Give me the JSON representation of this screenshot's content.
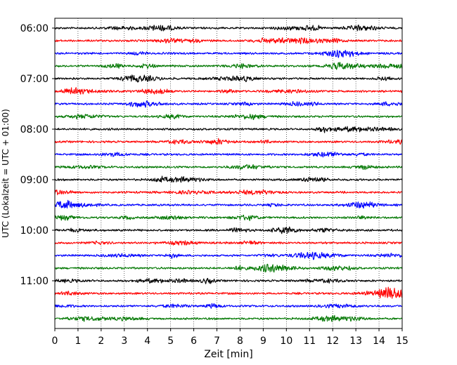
{
  "chart_data": {
    "type": "line",
    "title": "",
    "xlabel": "Zeit  [min]",
    "ylabel": "UTC (Lokalzeit = UTC + 01:00)",
    "xlim": [
      0,
      15
    ],
    "x_ticks": [
      "0",
      "1",
      "2",
      "3",
      "4",
      "5",
      "6",
      "7",
      "8",
      "9",
      "10",
      "11",
      "12",
      "13",
      "14",
      "15"
    ],
    "y_tick_labels": [
      "06:00",
      "07:00",
      "08:00",
      "09:00",
      "10:00",
      "11:00"
    ],
    "grid": "vertical-dotted",
    "series_colors": [
      "#000000",
      "#ff0000",
      "#0000ff",
      "#007700"
    ],
    "rows": [
      {
        "start": "06:00",
        "color": "#000000"
      },
      {
        "start": "06:15",
        "color": "#ff0000"
      },
      {
        "start": "06:30",
        "color": "#0000ff"
      },
      {
        "start": "06:45",
        "color": "#007700"
      },
      {
        "start": "07:00",
        "color": "#000000"
      },
      {
        "start": "07:15",
        "color": "#ff0000"
      },
      {
        "start": "07:30",
        "color": "#0000ff"
      },
      {
        "start": "07:45",
        "color": "#007700"
      },
      {
        "start": "08:00",
        "color": "#000000"
      },
      {
        "start": "08:15",
        "color": "#ff0000"
      },
      {
        "start": "08:30",
        "color": "#0000ff"
      },
      {
        "start": "08:45",
        "color": "#007700"
      },
      {
        "start": "09:00",
        "color": "#000000"
      },
      {
        "start": "09:15",
        "color": "#ff0000"
      },
      {
        "start": "09:30",
        "color": "#0000ff"
      },
      {
        "start": "09:45",
        "color": "#007700"
      },
      {
        "start": "10:00",
        "color": "#000000"
      },
      {
        "start": "10:15",
        "color": "#ff0000"
      },
      {
        "start": "10:30",
        "color": "#0000ff"
      },
      {
        "start": "10:45",
        "color": "#007700"
      },
      {
        "start": "11:00",
        "color": "#000000"
      },
      {
        "start": "11:15",
        "color": "#ff0000"
      },
      {
        "start": "11:30",
        "color": "#0000ff"
      },
      {
        "start": "11:45",
        "color": "#007700"
      }
    ]
  }
}
